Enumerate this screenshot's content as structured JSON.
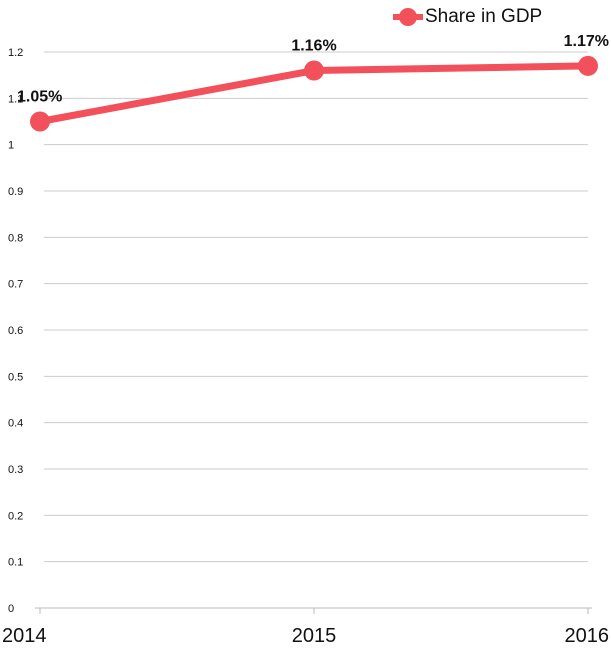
{
  "chart_data": {
    "type": "line",
    "title": "",
    "xlabel": "",
    "ylabel": "",
    "categories": [
      "2014",
      "2015",
      "2016"
    ],
    "series": [
      {
        "name": "Share in GDP",
        "values": [
          1.05,
          1.16,
          1.17
        ],
        "labels": [
          "1.05%",
          "1.16%",
          "1.17%"
        ]
      }
    ],
    "y_ticks": [
      "0",
      "0.1",
      "0.2",
      "0.3",
      "0.4",
      "0.5",
      "0.6",
      "0.7",
      "0.8",
      "0.9",
      "1",
      "1.1",
      "1.2"
    ],
    "ylim": [
      0,
      1.2
    ],
    "grid": true,
    "legend_position": "top-right",
    "colors": {
      "series": "#f2505a",
      "grid": "#cccccc",
      "text": "#111111"
    }
  }
}
